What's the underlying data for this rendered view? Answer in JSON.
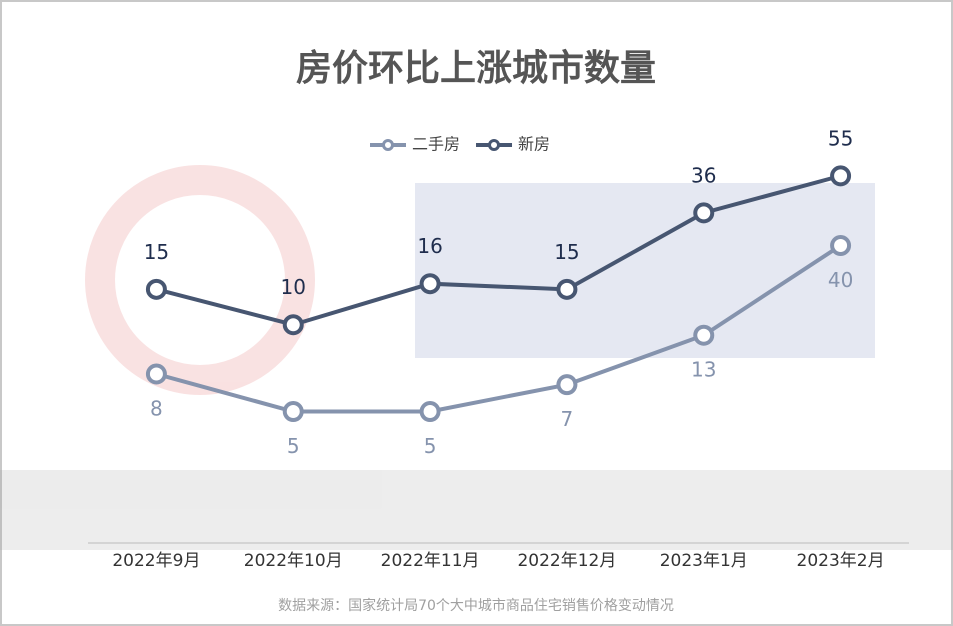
{
  "chart_data": {
    "type": "line",
    "title": "房价环比上涨城市数量",
    "categories": [
      "2022年9月",
      "2022年10月",
      "2022年11月",
      "2022年12月",
      "2023年1月",
      "2023年2月"
    ],
    "series": [
      {
        "name": "二手房",
        "color": "#8593ad",
        "values": [
          8,
          5,
          5,
          7,
          13,
          40
        ]
      },
      {
        "name": "新房",
        "color": "#475671",
        "values": [
          15,
          10,
          16,
          15,
          36,
          55
        ],
        "axis": "y2"
      }
    ],
    "log_scale": true,
    "ylim": [
      1,
      170
    ],
    "y2lim": [
      0.85,
      93
    ],
    "source": "数据来源：国家统计局70个大中城市商品住宅销售价格变动情况"
  }
}
